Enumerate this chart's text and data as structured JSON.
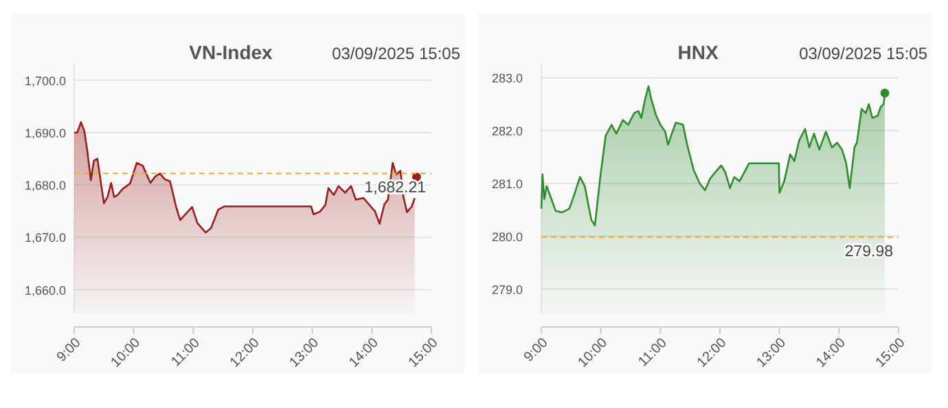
{
  "chart_data": [
    {
      "type": "area",
      "title": "VN-Index",
      "annotations": [
        "03/09/2025 15:05"
      ],
      "xlim": [
        9,
        15
      ],
      "xticks": [
        {
          "value": 9,
          "label": "9:00"
        },
        {
          "value": 10,
          "label": "10:00"
        },
        {
          "value": 11,
          "label": "11:00"
        },
        {
          "value": 12,
          "label": "12:00"
        },
        {
          "value": 13,
          "label": "13:00"
        },
        {
          "value": 14,
          "label": "14:00"
        },
        {
          "value": 15,
          "label": "15:00"
        }
      ],
      "ylim": [
        1655.5,
        1703
      ],
      "yticks": [
        {
          "value": 1660,
          "label": "1,660.0"
        },
        {
          "value": 1670,
          "label": "1,670.0"
        },
        {
          "value": 1680,
          "label": "1,680.0"
        },
        {
          "value": 1690,
          "label": "1,690.0"
        },
        {
          "value": 1700,
          "label": "1,700.0"
        }
      ],
      "grid": "y",
      "ref_lines": [
        {
          "axis": "y",
          "value": 1682.21,
          "label": "1,682.21",
          "color": "#f0a830",
          "line_style": "dashed"
        }
      ],
      "series": [
        {
          "color": "#9b1c1c",
          "x": [
            9,
            9.05,
            9.115,
            9.17,
            9.22,
            9.28,
            9.33,
            9.39,
            9.44,
            9.5,
            9.56,
            9.62,
            9.67,
            9.73,
            9.81,
            9.94,
            10.05,
            10.15,
            10.28,
            10.36,
            10.44,
            10.52,
            10.61,
            10.71,
            10.78,
            10.98,
            11.07,
            11.21,
            11.3,
            11.42,
            11.52,
            12.98,
            13.02,
            13.13,
            13.22,
            13.27,
            13.36,
            13.44,
            13.55,
            13.65,
            13.73,
            13.86,
            13.98,
            14.05,
            14.13,
            14.21,
            14.27,
            14.35,
            14.41,
            14.48,
            14.53,
            14.59,
            14.67,
            14.72
          ],
          "values": [
            1690,
            1690,
            1692,
            1690.3,
            1686.5,
            1680.9,
            1684.6,
            1685,
            1681.1,
            1676.5,
            1677.7,
            1680.4,
            1677.7,
            1678.1,
            1679.2,
            1680.3,
            1684.2,
            1683.7,
            1680.4,
            1681.6,
            1682.2,
            1681.1,
            1680.7,
            1675.9,
            1673.3,
            1675.8,
            1672.7,
            1670.9,
            1671.8,
            1675.3,
            1675.9,
            1675.9,
            1674.4,
            1674.9,
            1676.2,
            1679.4,
            1678.1,
            1679.8,
            1678.5,
            1679.8,
            1677.2,
            1677.5,
            1675.9,
            1675,
            1672.6,
            1676.3,
            1677.2,
            1684.2,
            1682,
            1682.7,
            1677.7,
            1674.8,
            1675.9,
            1677.5
          ]
        },
        {
          "type": "scatter",
          "marker": "circle",
          "color": "#9b1c1c",
          "x": [
            14.75
          ],
          "values": [
            1681.5
          ]
        }
      ]
    },
    {
      "type": "area",
      "title": "HNX",
      "annotations": [
        "03/09/2025 15:05"
      ],
      "xlim": [
        9,
        15
      ],
      "xticks": [
        {
          "value": 9,
          "label": "9:00"
        },
        {
          "value": 10,
          "label": "10:00"
        },
        {
          "value": 11,
          "label": "11:00"
        },
        {
          "value": 12,
          "label": "12:00"
        },
        {
          "value": 13,
          "label": "13:00"
        },
        {
          "value": 14,
          "label": "14:00"
        },
        {
          "value": 15,
          "label": "15:00"
        }
      ],
      "ylim": [
        278.54,
        283.25
      ],
      "yticks": [
        {
          "value": 279,
          "label": "279.0"
        },
        {
          "value": 280,
          "label": "280.0"
        },
        {
          "value": 281,
          "label": "281.0"
        },
        {
          "value": 282,
          "label": "282.0"
        },
        {
          "value": 283,
          "label": "283.0"
        }
      ],
      "grid": "y",
      "ref_lines": [
        {
          "axis": "y",
          "value": 279.98,
          "label": "279.98",
          "color": "#f0a830",
          "line_style": "dashed"
        }
      ],
      "series": [
        {
          "color": "#2e8b2e",
          "x": [
            9,
            9.02,
            9.05,
            9.09,
            9.17,
            9.24,
            9.35,
            9.47,
            9.54,
            9.65,
            9.73,
            9.78,
            9.84,
            9.9,
            9.99,
            10.08,
            10.18,
            10.26,
            10.37,
            10.46,
            10.56,
            10.63,
            10.68,
            10.74,
            10.8,
            10.85,
            10.93,
            11,
            11.08,
            11.13,
            11.19,
            11.26,
            11.38,
            11.45,
            11.56,
            11.66,
            11.75,
            11.83,
            11.92,
            12.02,
            12.09,
            12.17,
            12.24,
            12.33,
            12.41,
            12.49,
            12.54,
            12.99,
            13,
            13.08,
            13.18,
            13.25,
            13.33,
            13.43,
            13.5,
            13.58,
            13.67,
            13.78,
            13.88,
            13.97,
            14.05,
            14.12,
            14.18,
            14.26,
            14.3,
            14.38,
            14.45,
            14.5,
            14.56,
            14.65,
            14.7,
            14.75,
            14.77
          ],
          "values": [
            280.52,
            281.17,
            280.7,
            280.95,
            280.7,
            280.48,
            280.45,
            280.52,
            280.74,
            281.12,
            280.95,
            280.65,
            280.31,
            280.2,
            281.12,
            281.9,
            282.11,
            281.94,
            282.2,
            282.11,
            282.33,
            282.37,
            282.24,
            282.58,
            282.84,
            282.58,
            282.28,
            282.11,
            281.98,
            281.73,
            281.94,
            282.15,
            282.11,
            281.73,
            281.25,
            281,
            280.87,
            281.08,
            281.21,
            281.34,
            281.21,
            280.91,
            281.12,
            281.04,
            281.21,
            281.38,
            281.38,
            281.38,
            280.82,
            281.04,
            281.55,
            281.42,
            281.81,
            282.03,
            281.68,
            281.94,
            281.64,
            281.98,
            281.68,
            281.77,
            281.64,
            281.38,
            280.91,
            281.68,
            281.77,
            282.41,
            282.33,
            282.5,
            282.24,
            282.28,
            282.45,
            282.5,
            282.71
          ]
        },
        {
          "type": "scatter",
          "marker": "circle",
          "color": "#2e8b2e",
          "x": [
            14.77
          ],
          "values": [
            282.71
          ]
        }
      ]
    }
  ]
}
